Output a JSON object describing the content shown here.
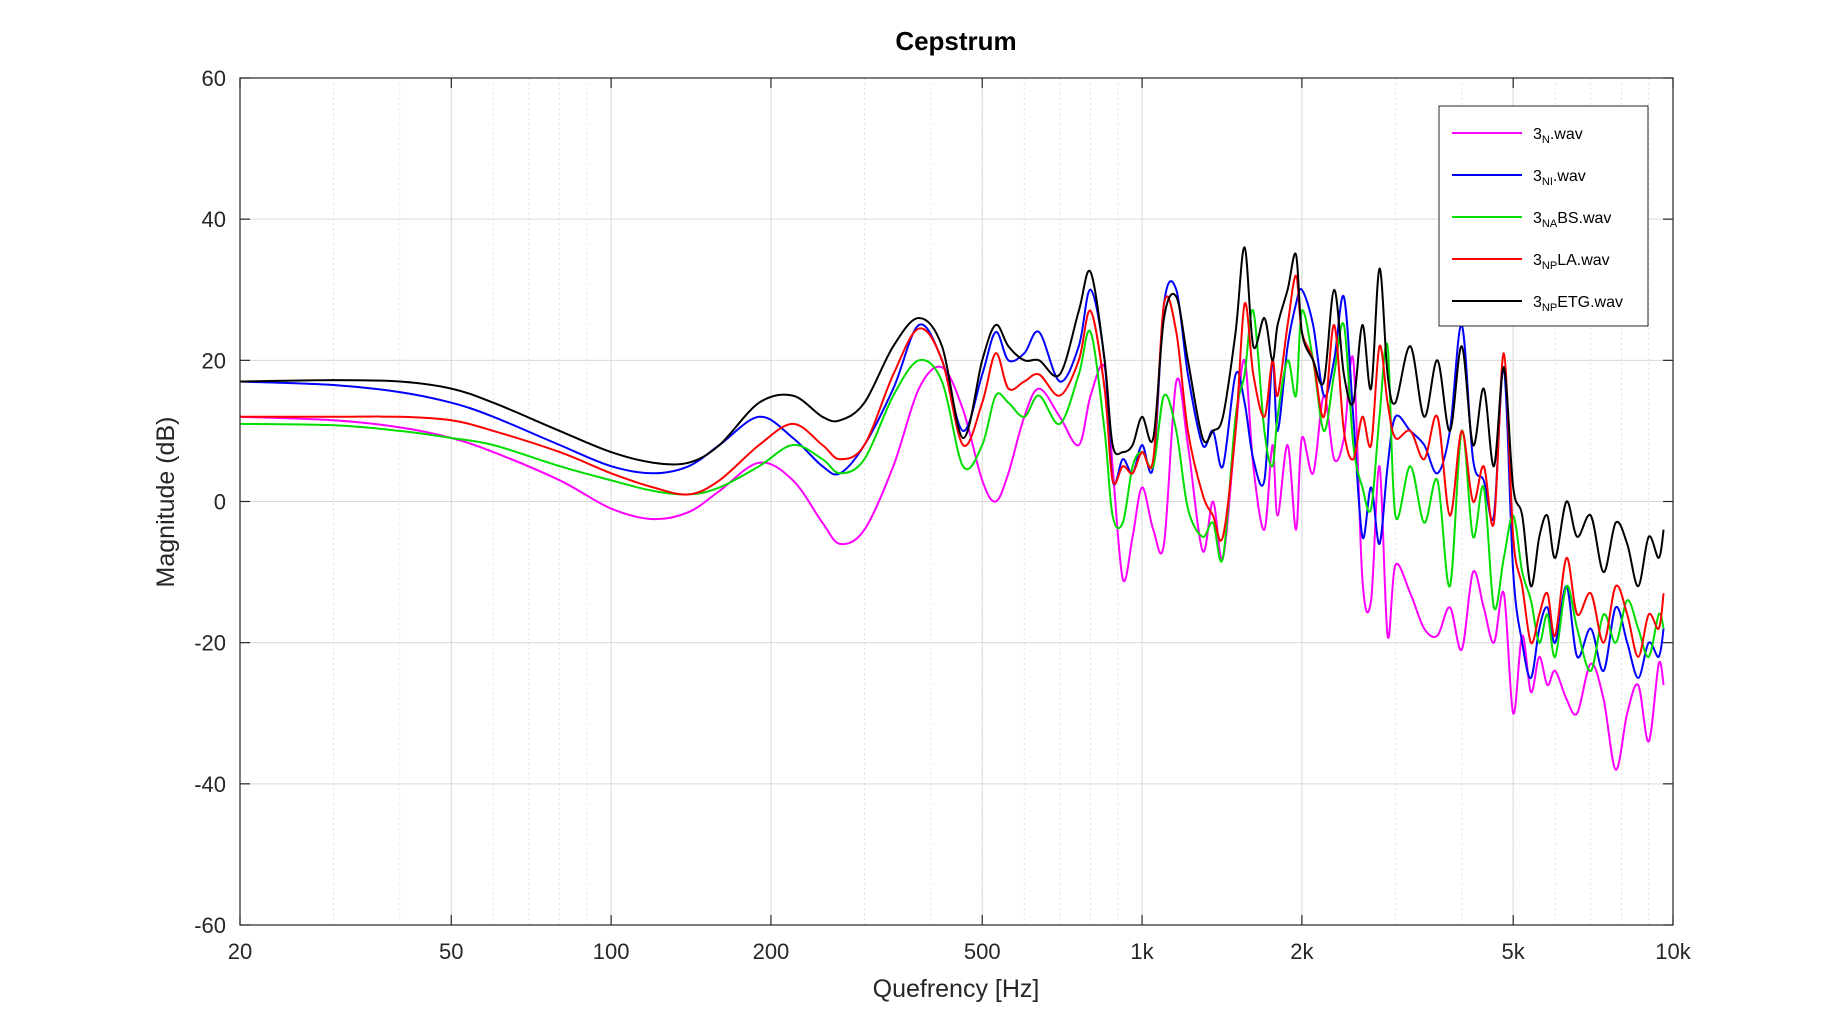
{
  "chart_data": {
    "type": "line",
    "title": "Cepstrum",
    "xlabel": "Quefrency [Hz]",
    "ylabel": "Magnitude (dB)",
    "xscale": "log",
    "xlim": [
      20,
      10000
    ],
    "ylim": [
      -60,
      60
    ],
    "xticks": [
      20,
      50,
      100,
      200,
      500,
      1000,
      2000,
      5000,
      10000
    ],
    "xtick_labels": [
      "20",
      "50",
      "100",
      "200",
      "500",
      "1k",
      "2k",
      "5k",
      "10k"
    ],
    "yticks": [
      -60,
      -40,
      -20,
      0,
      20,
      40,
      60
    ],
    "ytick_labels": [
      "-60",
      "-40",
      "-20",
      "0",
      "20",
      "40",
      "60"
    ],
    "grid": true,
    "minor_grid": true,
    "legend_position": "top-right",
    "series": [
      {
        "base": "3",
        "sub": "N",
        "suffix": ".wav",
        "color": "#ff00ff",
        "x": [
          20,
          30,
          40,
          50,
          60,
          80,
          100,
          120,
          140,
          160,
          190,
          220,
          250,
          270,
          300,
          340,
          380,
          420,
          460,
          500,
          530,
          560,
          600,
          640,
          700,
          760,
          800,
          850,
          880,
          920,
          960,
          1000,
          1050,
          1100,
          1160,
          1220,
          1300,
          1360,
          1420,
          1500,
          1560,
          1620,
          1700,
          1760,
          1800,
          1880,
          1950,
          2000,
          2100,
          2200,
          2300,
          2400,
          2500,
          2600,
          2700,
          2800,
          2900,
          3000,
          3200,
          3400,
          3600,
          3800,
          4000,
          4200,
          4400,
          4600,
          4800,
          5000,
          5200,
          5400,
          5600,
          5800,
          6000,
          6300,
          6600,
          7000,
          7400,
          7800,
          8200,
          8600,
          9000,
          9400,
          9600
        ],
        "y": [
          12,
          11.5,
          10.5,
          9,
          7,
          3,
          -1,
          -2.5,
          -1.5,
          1.5,
          5.5,
          3,
          -3,
          -6,
          -4,
          5,
          16,
          19,
          13,
          3,
          0,
          4,
          12,
          16,
          12,
          8,
          15,
          19,
          5,
          -11,
          -5,
          2,
          -4,
          -6,
          17,
          8,
          -7,
          0,
          -8,
          10,
          20,
          5,
          -4,
          8,
          -2,
          8,
          -4,
          9,
          4,
          15,
          6,
          9,
          20,
          -11,
          -14,
          5,
          -19,
          -9,
          -13,
          -18,
          -19,
          -15,
          -21,
          -10,
          -15,
          -20,
          -13,
          -30,
          -19,
          -27,
          -22,
          -26,
          -24,
          -28,
          -30,
          -23,
          -28,
          -38,
          -30,
          -26,
          -34,
          -23,
          -26
        ]
      },
      {
        "base": "3",
        "sub": "NI",
        "suffix": ".wav",
        "color": "#0000ff",
        "x": [
          20,
          30,
          40,
          50,
          60,
          80,
          100,
          120,
          140,
          160,
          190,
          220,
          250,
          270,
          300,
          340,
          380,
          420,
          460,
          500,
          530,
          560,
          600,
          640,
          700,
          760,
          800,
          850,
          880,
          920,
          960,
          1000,
          1050,
          1100,
          1160,
          1220,
          1300,
          1360,
          1420,
          1500,
          1560,
          1620,
          1700,
          1760,
          1800,
          1880,
          1950,
          2000,
          2100,
          2200,
          2300,
          2400,
          2500,
          2600,
          2700,
          2800,
          2900,
          3000,
          3200,
          3400,
          3600,
          3800,
          4000,
          4200,
          4400,
          4600,
          4800,
          5000,
          5200,
          5400,
          5600,
          5800,
          6000,
          6300,
          6600,
          7000,
          7400,
          7800,
          8200,
          8600,
          9000,
          9400,
          9600
        ],
        "y": [
          17,
          16.5,
          15.5,
          14,
          12,
          8,
          5,
          4,
          5,
          8,
          12,
          9,
          5,
          4,
          8,
          16,
          25,
          20,
          10,
          18,
          24,
          20,
          21,
          24,
          17,
          22,
          30,
          20,
          3,
          6,
          4,
          8,
          5,
          28,
          30,
          18,
          8,
          10,
          5,
          18,
          14,
          6,
          3,
          20,
          10,
          22,
          28,
          30,
          25,
          15,
          20,
          29,
          12,
          -5,
          2,
          -6,
          5,
          12,
          10,
          8,
          4,
          10,
          25,
          6,
          3,
          -2,
          19,
          -10,
          -20,
          -25,
          -18,
          -15,
          -20,
          -12,
          -22,
          -18,
          -24,
          -15,
          -20,
          -25,
          -20,
          -22,
          -18
        ]
      },
      {
        "base": "3",
        "sub": "NA",
        "suffix": "BS.wav",
        "color": "#00dd00",
        "x": [
          20,
          30,
          40,
          50,
          60,
          80,
          100,
          120,
          140,
          160,
          190,
          220,
          250,
          270,
          300,
          340,
          380,
          420,
          460,
          500,
          530,
          560,
          600,
          640,
          700,
          760,
          800,
          850,
          880,
          920,
          960,
          1000,
          1050,
          1100,
          1160,
          1220,
          1300,
          1360,
          1420,
          1500,
          1560,
          1620,
          1700,
          1760,
          1800,
          1880,
          1950,
          2000,
          2100,
          2200,
          2300,
          2400,
          2500,
          2600,
          2700,
          2800,
          2900,
          3000,
          3200,
          3400,
          3600,
          3800,
          4000,
          4200,
          4400,
          4600,
          4800,
          5000,
          5200,
          5400,
          5600,
          5800,
          6000,
          6300,
          6600,
          7000,
          7400,
          7800,
          8200,
          8600,
          9000,
          9400,
          9600
        ],
        "y": [
          11,
          10.8,
          10,
          9,
          8,
          5,
          3,
          1.5,
          1,
          2,
          5,
          8,
          6,
          4,
          6,
          15,
          20,
          17,
          5,
          8,
          15,
          14,
          12,
          15,
          11,
          18,
          24,
          10,
          -2,
          -3,
          5,
          7,
          5,
          15,
          10,
          -1,
          -5,
          -3,
          -8,
          12,
          18,
          27,
          10,
          5,
          12,
          20,
          15,
          27,
          20,
          10,
          18,
          25,
          8,
          2,
          -1,
          12,
          22,
          -2,
          5,
          -3,
          3,
          -12,
          10,
          -5,
          2,
          -15,
          -8,
          -2,
          -10,
          -14,
          -20,
          -16,
          -22,
          -12,
          -18,
          -24,
          -16,
          -20,
          -14,
          -18,
          -22,
          -16,
          -18
        ]
      },
      {
        "base": "3",
        "sub": "NP",
        "suffix": "LA.wav",
        "color": "#ff0000",
        "x": [
          20,
          30,
          40,
          50,
          60,
          80,
          100,
          120,
          140,
          160,
          190,
          220,
          250,
          270,
          300,
          340,
          380,
          420,
          460,
          500,
          530,
          560,
          600,
          640,
          700,
          760,
          800,
          850,
          880,
          920,
          960,
          1000,
          1050,
          1100,
          1160,
          1220,
          1300,
          1360,
          1420,
          1500,
          1560,
          1620,
          1700,
          1760,
          1800,
          1880,
          1950,
          2000,
          2100,
          2200,
          2300,
          2400,
          2500,
          2600,
          2700,
          2800,
          2900,
          3000,
          3200,
          3400,
          3600,
          3800,
          4000,
          4200,
          4400,
          4600,
          4800,
          5000,
          5200,
          5400,
          5600,
          5800,
          6000,
          6300,
          6600,
          7000,
          7400,
          7800,
          8200,
          8600,
          9000,
          9400,
          9600
        ],
        "y": [
          12,
          12,
          12,
          11.5,
          10,
          7,
          4,
          2,
          1,
          3,
          8,
          11,
          8,
          6,
          8,
          18,
          24.5,
          20,
          8,
          14,
          21,
          16,
          17,
          18,
          15,
          20,
          27,
          16,
          3,
          5,
          4,
          7,
          6,
          28,
          24,
          10,
          1,
          -2,
          -5,
          10,
          28,
          18,
          12,
          20,
          15,
          25,
          32,
          24,
          20,
          12,
          25,
          10,
          6,
          12,
          8,
          22,
          14,
          9,
          10,
          6,
          12,
          -2,
          10,
          0,
          5,
          -3,
          21,
          -5,
          -12,
          -20,
          -16,
          -13,
          -19,
          -8,
          -16,
          -13,
          -20,
          -12,
          -16,
          -22,
          -16,
          -18,
          -13
        ]
      },
      {
        "base": "3",
        "sub": "NP",
        "suffix": "ETG.wav",
        "color": "#000000",
        "x": [
          20,
          30,
          40,
          50,
          60,
          80,
          100,
          120,
          140,
          160,
          190,
          220,
          250,
          270,
          300,
          340,
          380,
          420,
          460,
          500,
          530,
          560,
          600,
          640,
          700,
          760,
          800,
          850,
          880,
          920,
          960,
          1000,
          1050,
          1100,
          1160,
          1220,
          1300,
          1360,
          1420,
          1500,
          1560,
          1620,
          1700,
          1760,
          1800,
          1880,
          1950,
          2000,
          2100,
          2200,
          2300,
          2400,
          2500,
          2600,
          2700,
          2800,
          2900,
          3000,
          3200,
          3400,
          3600,
          3800,
          4000,
          4200,
          4400,
          4600,
          4800,
          5000,
          5200,
          5400,
          5600,
          5800,
          6000,
          6300,
          6600,
          7000,
          7400,
          7800,
          8200,
          8600,
          9000,
          9400,
          9600
        ],
        "y": [
          17,
          17.2,
          17,
          16,
          14,
          10,
          7,
          5.5,
          5.5,
          8,
          14,
          15,
          12,
          11.5,
          14,
          22,
          26,
          22,
          9,
          20,
          25,
          22,
          20,
          20,
          18,
          27,
          32.5,
          20,
          8,
          7,
          8,
          12,
          9,
          26,
          29,
          20,
          9,
          10,
          12,
          24,
          36,
          22,
          26,
          20,
          25,
          30,
          35,
          24,
          20,
          17,
          30,
          18,
          14,
          25,
          16,
          33,
          18,
          14,
          22,
          12,
          20,
          10,
          22,
          8,
          16,
          5,
          19,
          2,
          -2,
          -12,
          -5,
          -2,
          -8,
          0,
          -5,
          -2,
          -10,
          -3,
          -6,
          -12,
          -5,
          -8,
          -4
        ]
      }
    ]
  }
}
